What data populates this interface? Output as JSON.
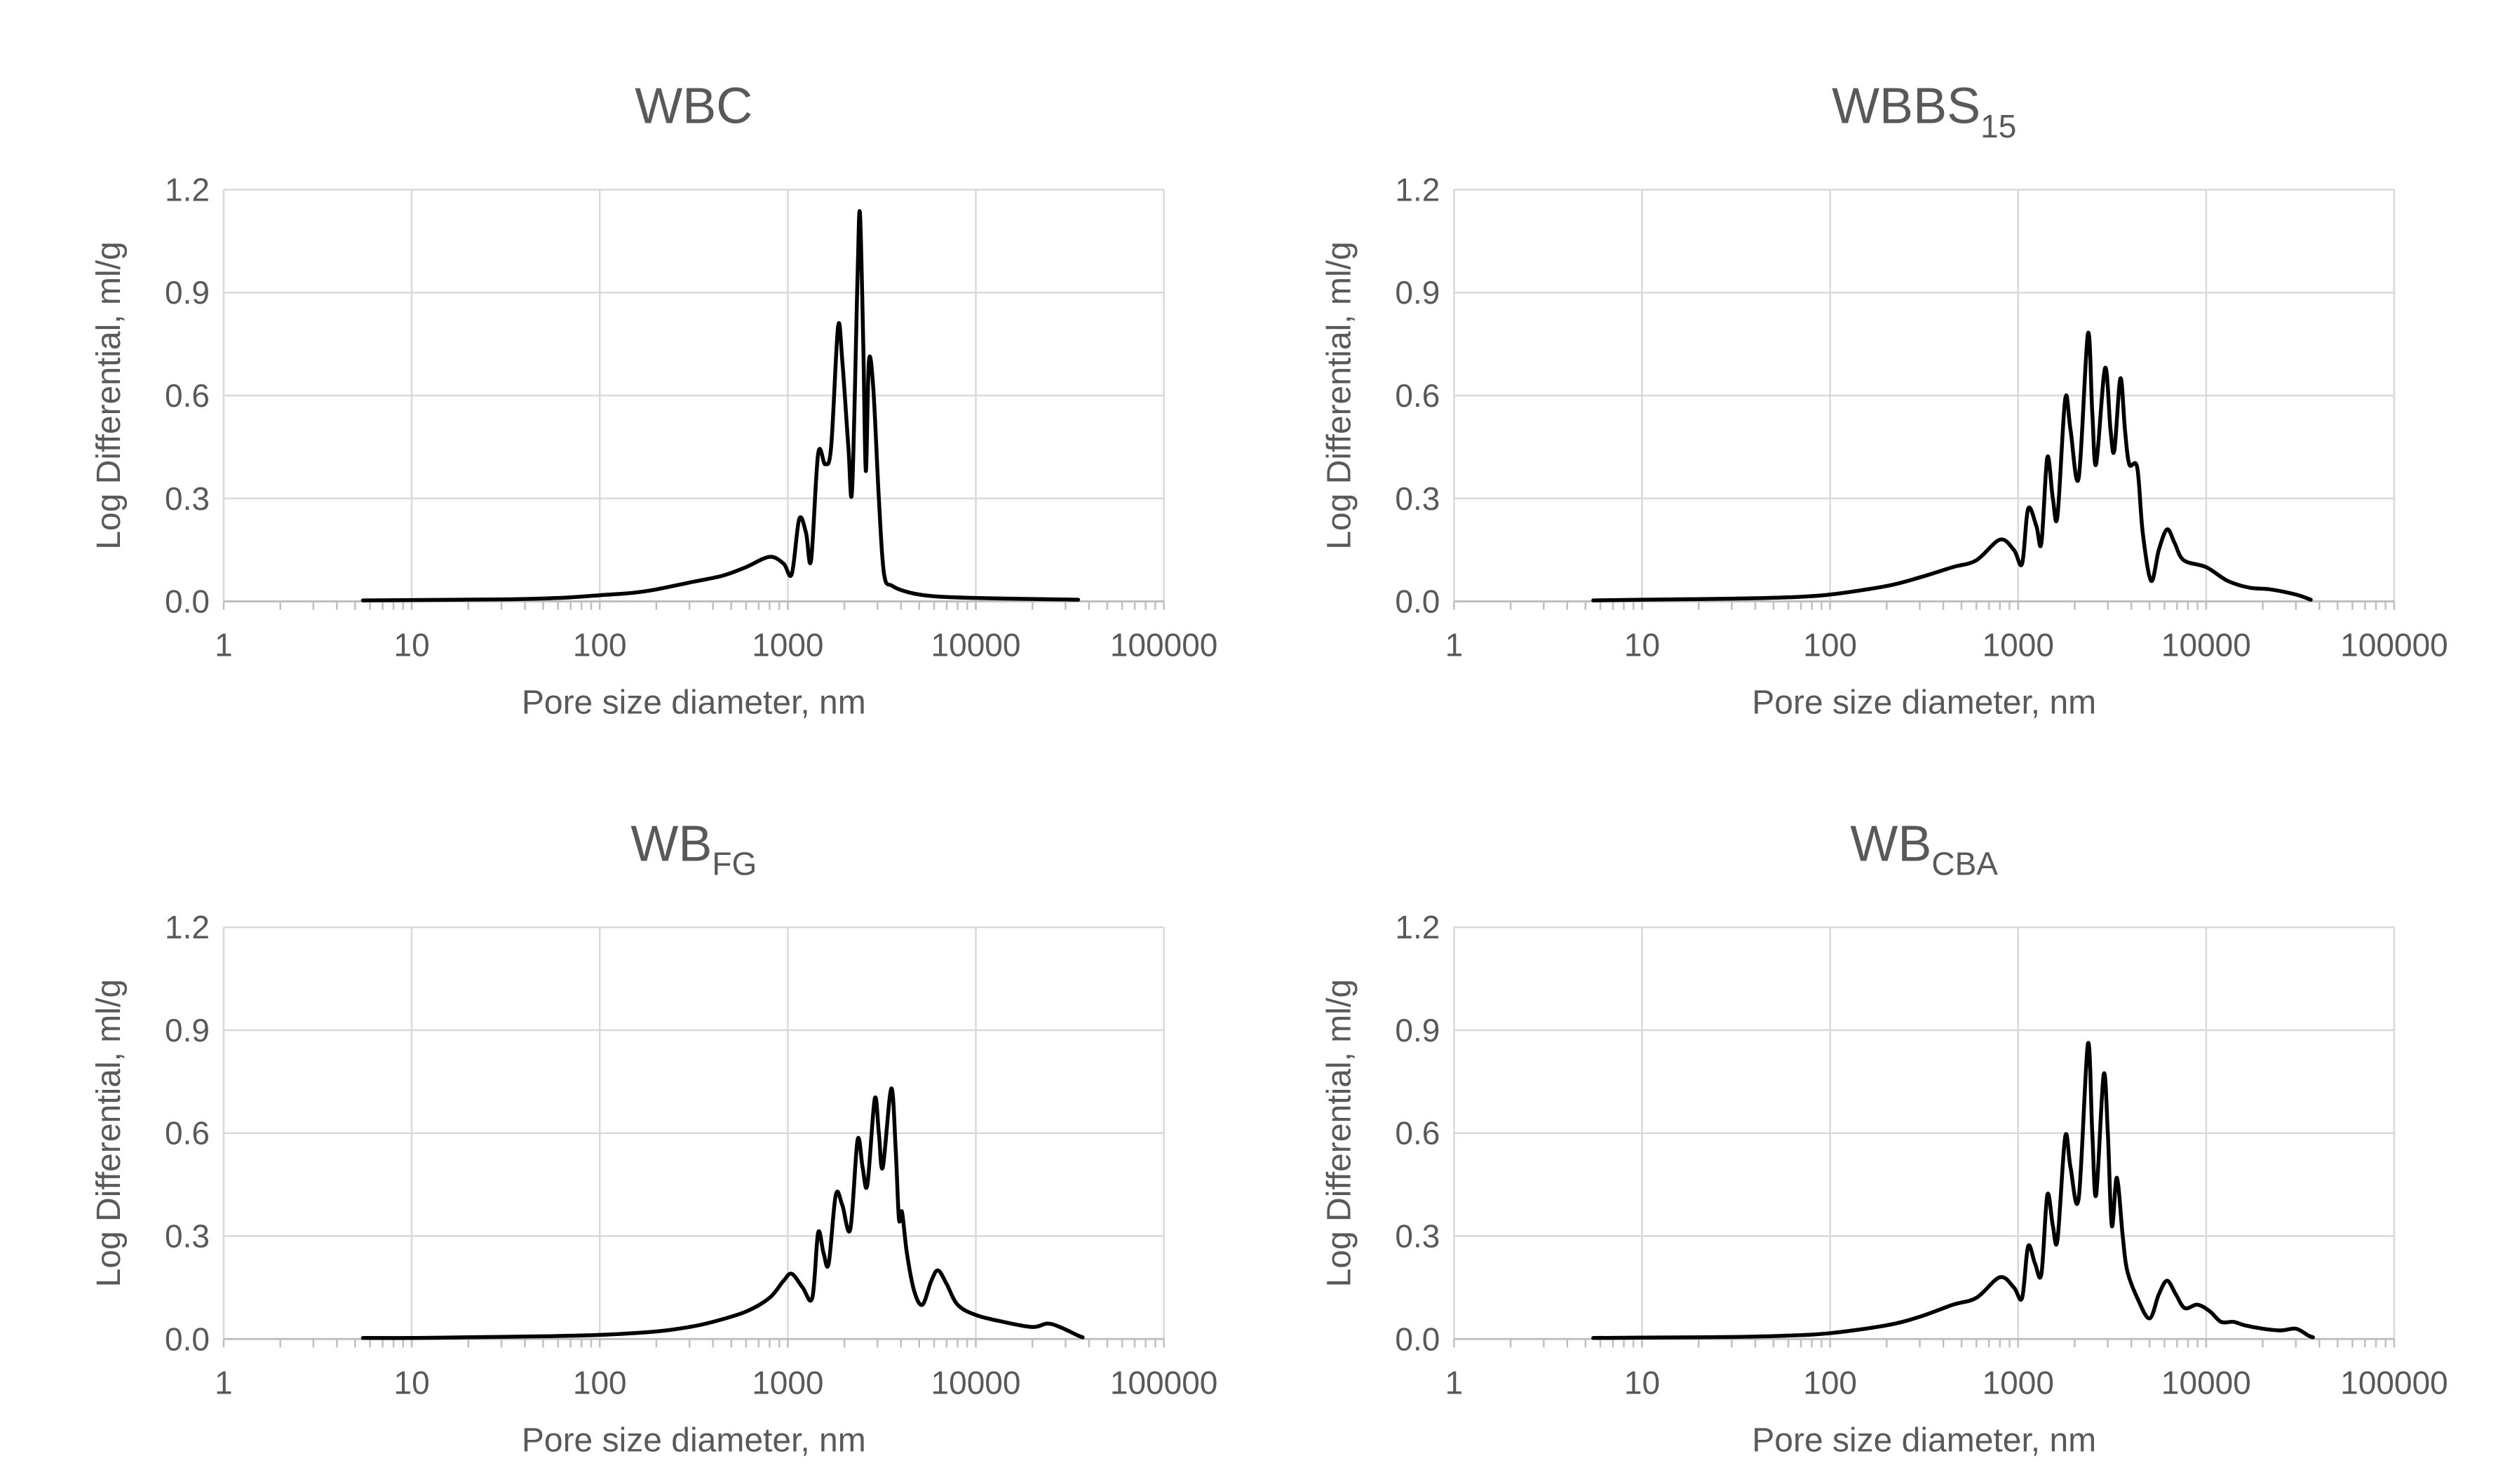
{
  "chart_data": [
    {
      "type": "line",
      "title": "WBC",
      "title_sub": "",
      "xlabel": "Pore size diameter, nm",
      "ylabel": "Log Differential, ml/g",
      "xscale": "log",
      "xlim": [
        1,
        100000
      ],
      "ylim": [
        0,
        1.2
      ],
      "x_ticks": [
        "1",
        "10",
        "100",
        "1000",
        "10000",
        "100000"
      ],
      "y_ticks": [
        "0.0",
        "0.3",
        "0.6",
        "0.9",
        "1.2"
      ],
      "grid": true,
      "series": [
        {
          "name": "WBC",
          "points": [
            [
              5.5,
              0.003
            ],
            [
              10,
              0.004
            ],
            [
              30,
              0.006
            ],
            [
              60,
              0.01
            ],
            [
              100,
              0.018
            ],
            [
              150,
              0.025
            ],
            [
              200,
              0.035
            ],
            [
              300,
              0.055
            ],
            [
              450,
              0.075
            ],
            [
              600,
              0.1
            ],
            [
              800,
              0.13
            ],
            [
              950,
              0.11
            ],
            [
              1050,
              0.08
            ],
            [
              1150,
              0.24
            ],
            [
              1250,
              0.2
            ],
            [
              1330,
              0.12
            ],
            [
              1450,
              0.43
            ],
            [
              1580,
              0.4
            ],
            [
              1700,
              0.45
            ],
            [
              1850,
              0.8
            ],
            [
              1950,
              0.7
            ],
            [
              2100,
              0.45
            ],
            [
              2200,
              0.33
            ],
            [
              2350,
              0.95
            ],
            [
              2420,
              1.13
            ],
            [
              2520,
              0.75
            ],
            [
              2600,
              0.38
            ],
            [
              2700,
              0.7
            ],
            [
              2850,
              0.62
            ],
            [
              3050,
              0.3
            ],
            [
              3250,
              0.08
            ],
            [
              3600,
              0.045
            ],
            [
              4500,
              0.025
            ],
            [
              6000,
              0.015
            ],
            [
              10000,
              0.01
            ],
            [
              20000,
              0.007
            ],
            [
              35000,
              0.005
            ]
          ]
        }
      ]
    },
    {
      "type": "line",
      "title": "WBBS",
      "title_sub": "15",
      "xlabel": "Pore size diameter, nm",
      "ylabel": "Log Differential, ml/g",
      "xscale": "log",
      "xlim": [
        1,
        100000
      ],
      "ylim": [
        0,
        1.2
      ],
      "x_ticks": [
        "1",
        "10",
        "100",
        "1000",
        "10000",
        "100000"
      ],
      "y_ticks": [
        "0.0",
        "0.3",
        "0.6",
        "0.9",
        "1.2"
      ],
      "grid": true,
      "series": [
        {
          "name": "WBBS15",
          "points": [
            [
              5.5,
              0.003
            ],
            [
              10,
              0.005
            ],
            [
              30,
              0.008
            ],
            [
              60,
              0.012
            ],
            [
              100,
              0.02
            ],
            [
              200,
              0.045
            ],
            [
              300,
              0.07
            ],
            [
              450,
              0.1
            ],
            [
              600,
              0.12
            ],
            [
              800,
              0.18
            ],
            [
              950,
              0.15
            ],
            [
              1050,
              0.11
            ],
            [
              1130,
              0.27
            ],
            [
              1250,
              0.22
            ],
            [
              1330,
              0.17
            ],
            [
              1430,
              0.42
            ],
            [
              1530,
              0.3
            ],
            [
              1620,
              0.25
            ],
            [
              1780,
              0.59
            ],
            [
              1900,
              0.5
            ],
            [
              2100,
              0.36
            ],
            [
              2350,
              0.78
            ],
            [
              2480,
              0.55
            ],
            [
              2600,
              0.4
            ],
            [
              2900,
              0.68
            ],
            [
              3100,
              0.5
            ],
            [
              3250,
              0.44
            ],
            [
              3500,
              0.65
            ],
            [
              3700,
              0.5
            ],
            [
              3900,
              0.4
            ],
            [
              4300,
              0.39
            ],
            [
              4600,
              0.2
            ],
            [
              5100,
              0.06
            ],
            [
              5600,
              0.15
            ],
            [
              6200,
              0.21
            ],
            [
              6800,
              0.17
            ],
            [
              7600,
              0.12
            ],
            [
              10000,
              0.1
            ],
            [
              13000,
              0.06
            ],
            [
              17000,
              0.04
            ],
            [
              22000,
              0.035
            ],
            [
              30000,
              0.02
            ],
            [
              36000,
              0.005
            ]
          ]
        }
      ]
    },
    {
      "type": "line",
      "title": "WB",
      "title_sub": "FG",
      "xlabel": "Pore size diameter, nm",
      "ylabel": "Log Differential, ml/g",
      "xscale": "log",
      "xlim": [
        1,
        100000
      ],
      "ylim": [
        0,
        1.2
      ],
      "x_ticks": [
        "1",
        "10",
        "100",
        "1000",
        "10000",
        "100000"
      ],
      "y_ticks": [
        "0.0",
        "0.3",
        "0.6",
        "0.9",
        "1.2"
      ],
      "grid": true,
      "series": [
        {
          "name": "WBFG",
          "points": [
            [
              5.5,
              0.003
            ],
            [
              10,
              0.003
            ],
            [
              20,
              0.005
            ],
            [
              50,
              0.008
            ],
            [
              100,
              0.012
            ],
            [
              200,
              0.022
            ],
            [
              300,
              0.035
            ],
            [
              400,
              0.05
            ],
            [
              600,
              0.08
            ],
            [
              800,
              0.12
            ],
            [
              950,
              0.17
            ],
            [
              1050,
              0.19
            ],
            [
              1200,
              0.15
            ],
            [
              1350,
              0.12
            ],
            [
              1450,
              0.31
            ],
            [
              1550,
              0.25
            ],
            [
              1650,
              0.22
            ],
            [
              1800,
              0.42
            ],
            [
              1950,
              0.39
            ],
            [
              2150,
              0.32
            ],
            [
              2350,
              0.58
            ],
            [
              2500,
              0.5
            ],
            [
              2650,
              0.45
            ],
            [
              2900,
              0.7
            ],
            [
              3050,
              0.6
            ],
            [
              3200,
              0.5
            ],
            [
              3550,
              0.73
            ],
            [
              3750,
              0.55
            ],
            [
              3900,
              0.35
            ],
            [
              4050,
              0.37
            ],
            [
              4300,
              0.25
            ],
            [
              4700,
              0.14
            ],
            [
              5200,
              0.1
            ],
            [
              5800,
              0.17
            ],
            [
              6300,
              0.2
            ],
            [
              7000,
              0.16
            ],
            [
              8000,
              0.1
            ],
            [
              10000,
              0.07
            ],
            [
              14000,
              0.05
            ],
            [
              20000,
              0.035
            ],
            [
              24000,
              0.045
            ],
            [
              28000,
              0.035
            ],
            [
              35000,
              0.01
            ],
            [
              37000,
              0.005
            ]
          ]
        }
      ]
    },
    {
      "type": "line",
      "title": "WB",
      "title_sub": "CBA",
      "xlabel": "Pore size diameter, nm",
      "ylabel": "Log Differential, ml/g",
      "xscale": "log",
      "xlim": [
        1,
        100000
      ],
      "ylim": [
        0,
        1.2
      ],
      "x_ticks": [
        "1",
        "10",
        "100",
        "1000",
        "10000",
        "100000"
      ],
      "y_ticks": [
        "0.0",
        "0.3",
        "0.6",
        "0.9",
        "1.2"
      ],
      "grid": true,
      "series": [
        {
          "name": "WBCBA",
          "points": [
            [
              5.5,
              0.003
            ],
            [
              10,
              0.004
            ],
            [
              30,
              0.006
            ],
            [
              60,
              0.01
            ],
            [
              100,
              0.017
            ],
            [
              200,
              0.04
            ],
            [
              300,
              0.065
            ],
            [
              450,
              0.1
            ],
            [
              600,
              0.12
            ],
            [
              800,
              0.18
            ],
            [
              950,
              0.15
            ],
            [
              1050,
              0.12
            ],
            [
              1130,
              0.27
            ],
            [
              1230,
              0.22
            ],
            [
              1330,
              0.19
            ],
            [
              1430,
              0.42
            ],
            [
              1530,
              0.33
            ],
            [
              1620,
              0.29
            ],
            [
              1780,
              0.59
            ],
            [
              1900,
              0.5
            ],
            [
              2100,
              0.41
            ],
            [
              2350,
              0.86
            ],
            [
              2480,
              0.6
            ],
            [
              2600,
              0.42
            ],
            [
              2850,
              0.77
            ],
            [
              3000,
              0.6
            ],
            [
              3150,
              0.33
            ],
            [
              3350,
              0.47
            ],
            [
              3600,
              0.3
            ],
            [
              3800,
              0.2
            ],
            [
              4300,
              0.12
            ],
            [
              5000,
              0.06
            ],
            [
              5600,
              0.13
            ],
            [
              6200,
              0.17
            ],
            [
              6900,
              0.13
            ],
            [
              7700,
              0.09
            ],
            [
              9000,
              0.1
            ],
            [
              10500,
              0.08
            ],
            [
              12000,
              0.05
            ],
            [
              14000,
              0.05
            ],
            [
              16000,
              0.04
            ],
            [
              20000,
              0.03
            ],
            [
              25000,
              0.025
            ],
            [
              30000,
              0.03
            ],
            [
              35000,
              0.01
            ],
            [
              37000,
              0.005
            ]
          ]
        }
      ]
    }
  ]
}
